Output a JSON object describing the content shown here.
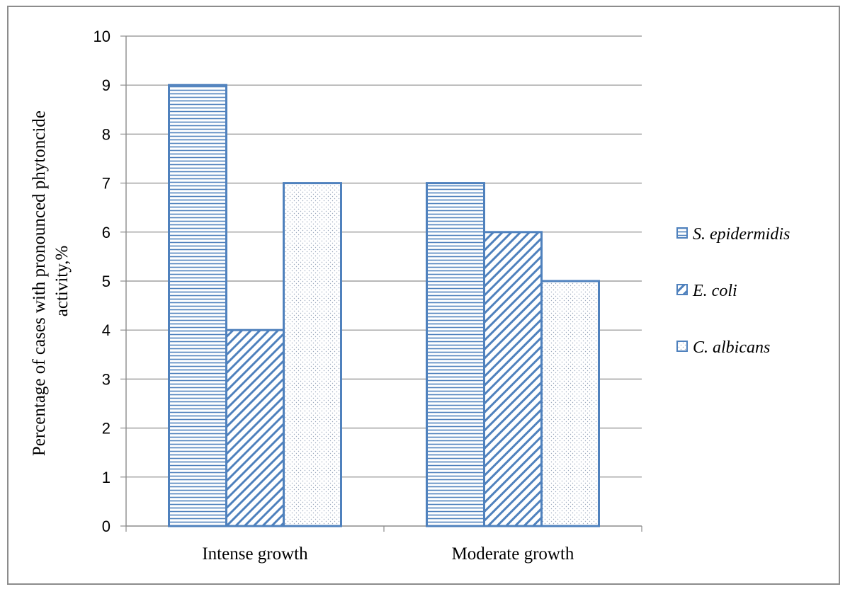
{
  "chart_data": {
    "type": "bar",
    "categories": [
      "Intense growth",
      "Moderate growth"
    ],
    "series": [
      {
        "name": "S. epidermidis",
        "values": [
          9,
          7
        ],
        "pattern": "horizontal-lines",
        "color": "#4f81bd"
      },
      {
        "name": "E. coli",
        "values": [
          4,
          6
        ],
        "pattern": "diagonal-lines",
        "color": "#4f81bd"
      },
      {
        "name": "C. albicans",
        "values": [
          7,
          5
        ],
        "pattern": "dots",
        "color": "#4f81bd"
      }
    ],
    "title": "",
    "xlabel": "",
    "ylabel_lines": [
      "Percentage of cases with pronounced phytoncide",
      "activity,%"
    ],
    "ylim": [
      0,
      10
    ],
    "yticks": [
      0,
      1,
      2,
      3,
      4,
      5,
      6,
      7,
      8,
      9,
      10
    ],
    "grid": true,
    "legend": "right"
  }
}
